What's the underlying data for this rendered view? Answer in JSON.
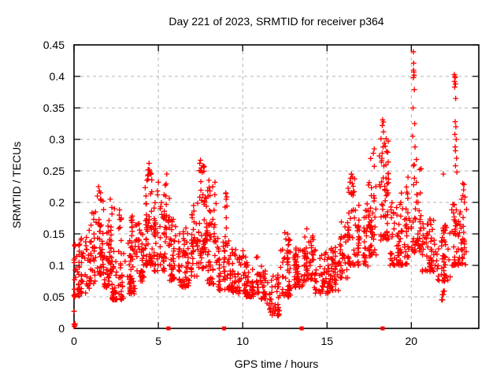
{
  "chart_data": {
    "type": "scatter",
    "title": "Day 221 of 2023, SRMTID for receiver p364",
    "xlabel": "GPS time / hours",
    "ylabel": "SRMTID / TECUs",
    "xlim": [
      0,
      24
    ],
    "ylim": [
      0,
      0.45
    ],
    "xticks": [
      0,
      5,
      10,
      15,
      20
    ],
    "xtick_labels": [
      "0",
      "5",
      "10",
      "15",
      "20"
    ],
    "yticks": [
      0,
      0.05,
      0.1,
      0.15,
      0.2,
      0.25,
      0.3,
      0.35,
      0.4,
      0.45
    ],
    "ytick_labels": [
      "0",
      "0.05",
      "0.1",
      "0.15",
      "0.2",
      "0.25",
      "0.3",
      "0.35",
      "0.4",
      "0.45"
    ],
    "grid": true,
    "legend": "none",
    "colors": {
      "marker": "#ff0000",
      "grid": "#b3b3b3",
      "frame": "#000000",
      "background": "#ffffff"
    },
    "marker": {
      "shape": "plus",
      "color": "#ff0000"
    },
    "axis_markers": {
      "shape": "filled-square",
      "color": "#ff0000",
      "y": 0,
      "x": [
        5.6,
        8.9,
        13.5,
        18.3
      ]
    },
    "notable_points": [
      [
        0.02,
        0.003
      ],
      [
        0.03,
        0.05
      ],
      [
        11.45,
        0.04
      ],
      [
        11.6,
        0.03
      ],
      [
        11.75,
        0.021
      ],
      [
        11.85,
        0.034
      ],
      [
        1.38,
        0.21
      ],
      [
        1.45,
        0.225
      ],
      [
        1.5,
        0.218
      ],
      [
        2.15,
        0.205
      ],
      [
        2.4,
        0.19
      ],
      [
        2.7,
        0.188
      ],
      [
        4.4,
        0.252
      ],
      [
        4.45,
        0.262
      ],
      [
        4.5,
        0.248
      ],
      [
        5.0,
        0.232
      ],
      [
        5.5,
        0.245
      ],
      [
        7.45,
        0.262
      ],
      [
        7.5,
        0.267
      ],
      [
        7.55,
        0.255
      ],
      [
        7.6,
        0.248
      ],
      [
        8.0,
        0.235
      ],
      [
        9.0,
        0.215
      ],
      [
        9.02,
        0.205
      ],
      [
        12.5,
        0.152
      ],
      [
        13.8,
        0.158
      ],
      [
        16.4,
        0.238
      ],
      [
        16.45,
        0.245
      ],
      [
        16.5,
        0.23
      ],
      [
        17.75,
        0.278
      ],
      [
        17.8,
        0.285
      ],
      [
        18.2,
        0.301
      ],
      [
        18.25,
        0.27
      ],
      [
        18.28,
        0.322
      ],
      [
        18.3,
        0.331
      ],
      [
        18.32,
        0.288
      ],
      [
        18.35,
        0.312
      ],
      [
        18.4,
        0.294
      ],
      [
        19.8,
        0.24
      ],
      [
        20.08,
        0.305
      ],
      [
        20.1,
        0.35
      ],
      [
        20.12,
        0.439
      ],
      [
        20.12,
        0.398
      ],
      [
        20.13,
        0.41
      ],
      [
        20.14,
        0.421
      ],
      [
        20.15,
        0.407
      ],
      [
        20.16,
        0.402
      ],
      [
        20.18,
        0.379
      ],
      [
        20.2,
        0.325
      ],
      [
        20.22,
        0.288
      ],
      [
        20.3,
        0.268
      ],
      [
        20.5,
        0.252
      ],
      [
        21.9,
        0.245
      ],
      [
        22.55,
        0.403
      ],
      [
        22.56,
        0.392
      ],
      [
        22.57,
        0.383
      ],
      [
        22.58,
        0.4
      ],
      [
        22.58,
        0.308
      ],
      [
        22.6,
        0.398
      ],
      [
        22.6,
        0.328
      ],
      [
        22.6,
        0.288
      ],
      [
        22.62,
        0.388
      ],
      [
        22.62,
        0.282
      ],
      [
        22.62,
        0.258
      ],
      [
        22.63,
        0.365
      ],
      [
        22.64,
        0.32
      ],
      [
        22.66,
        0.3
      ],
      [
        22.68,
        0.27
      ],
      [
        22.7,
        0.248
      ],
      [
        23.05,
        0.23
      ],
      [
        23.1,
        0.22
      ],
      [
        23.15,
        0.2
      ]
    ],
    "scatter_bands_format": "[x_start_h, x_end_h, y_min, y_max, n_points]",
    "scatter_bands": [
      [
        0.0,
        0.3,
        0.05,
        0.135,
        30
      ],
      [
        0.0,
        0.1,
        0.0,
        0.05,
        4
      ],
      [
        0.3,
        0.9,
        0.055,
        0.15,
        40
      ],
      [
        0.9,
        1.3,
        0.07,
        0.185,
        35
      ],
      [
        1.3,
        1.75,
        0.085,
        0.225,
        45
      ],
      [
        1.75,
        2.1,
        0.065,
        0.165,
        30
      ],
      [
        2.05,
        2.25,
        0.09,
        0.205,
        20
      ],
      [
        2.25,
        3.0,
        0.045,
        0.125,
        55
      ],
      [
        2.6,
        2.8,
        0.1,
        0.19,
        10
      ],
      [
        3.0,
        3.7,
        0.055,
        0.14,
        50
      ],
      [
        3.4,
        3.65,
        0.13,
        0.185,
        12
      ],
      [
        3.7,
        4.2,
        0.075,
        0.175,
        40
      ],
      [
        4.2,
        4.75,
        0.1,
        0.255,
        60
      ],
      [
        4.75,
        5.35,
        0.09,
        0.225,
        55
      ],
      [
        5.35,
        5.65,
        0.11,
        0.245,
        25
      ],
      [
        5.65,
        6.3,
        0.075,
        0.175,
        50
      ],
      [
        6.3,
        6.9,
        0.065,
        0.16,
        45
      ],
      [
        6.9,
        7.35,
        0.08,
        0.2,
        40
      ],
      [
        7.35,
        7.85,
        0.095,
        0.265,
        55
      ],
      [
        7.85,
        8.3,
        0.07,
        0.225,
        40
      ],
      [
        8.3,
        8.55,
        0.1,
        0.255,
        15
      ],
      [
        8.55,
        9.4,
        0.06,
        0.14,
        55
      ],
      [
        8.9,
        9.1,
        0.13,
        0.215,
        10
      ],
      [
        9.4,
        10.2,
        0.055,
        0.125,
        55
      ],
      [
        10.2,
        10.9,
        0.05,
        0.115,
        45
      ],
      [
        10.9,
        11.35,
        0.045,
        0.105,
        30
      ],
      [
        11.35,
        12.2,
        0.02,
        0.085,
        40
      ],
      [
        12.2,
        12.9,
        0.05,
        0.15,
        45
      ],
      [
        12.6,
        12.75,
        0.1,
        0.14,
        8
      ],
      [
        12.9,
        13.6,
        0.065,
        0.15,
        50
      ],
      [
        13.6,
        14.25,
        0.075,
        0.155,
        50
      ],
      [
        14.25,
        15.1,
        0.055,
        0.125,
        55
      ],
      [
        15.1,
        15.7,
        0.06,
        0.135,
        45
      ],
      [
        15.7,
        16.25,
        0.08,
        0.17,
        40
      ],
      [
        16.25,
        16.8,
        0.1,
        0.245,
        40
      ],
      [
        16.8,
        17.45,
        0.095,
        0.205,
        45
      ],
      [
        17.45,
        18.05,
        0.115,
        0.285,
        50
      ],
      [
        18.05,
        18.65,
        0.14,
        0.33,
        55
      ],
      [
        18.65,
        19.35,
        0.1,
        0.2,
        45
      ],
      [
        19.35,
        20.0,
        0.1,
        0.225,
        45
      ],
      [
        20.0,
        20.35,
        0.12,
        0.26,
        25
      ],
      [
        20.35,
        20.65,
        0.12,
        0.255,
        20
      ],
      [
        20.65,
        21.5,
        0.09,
        0.175,
        55
      ],
      [
        21.5,
        22.3,
        0.075,
        0.165,
        50
      ],
      [
        21.8,
        22.0,
        0.045,
        0.075,
        8
      ],
      [
        22.3,
        22.85,
        0.1,
        0.21,
        40
      ],
      [
        22.85,
        23.3,
        0.1,
        0.23,
        30
      ]
    ],
    "band_seed": 1234
  }
}
